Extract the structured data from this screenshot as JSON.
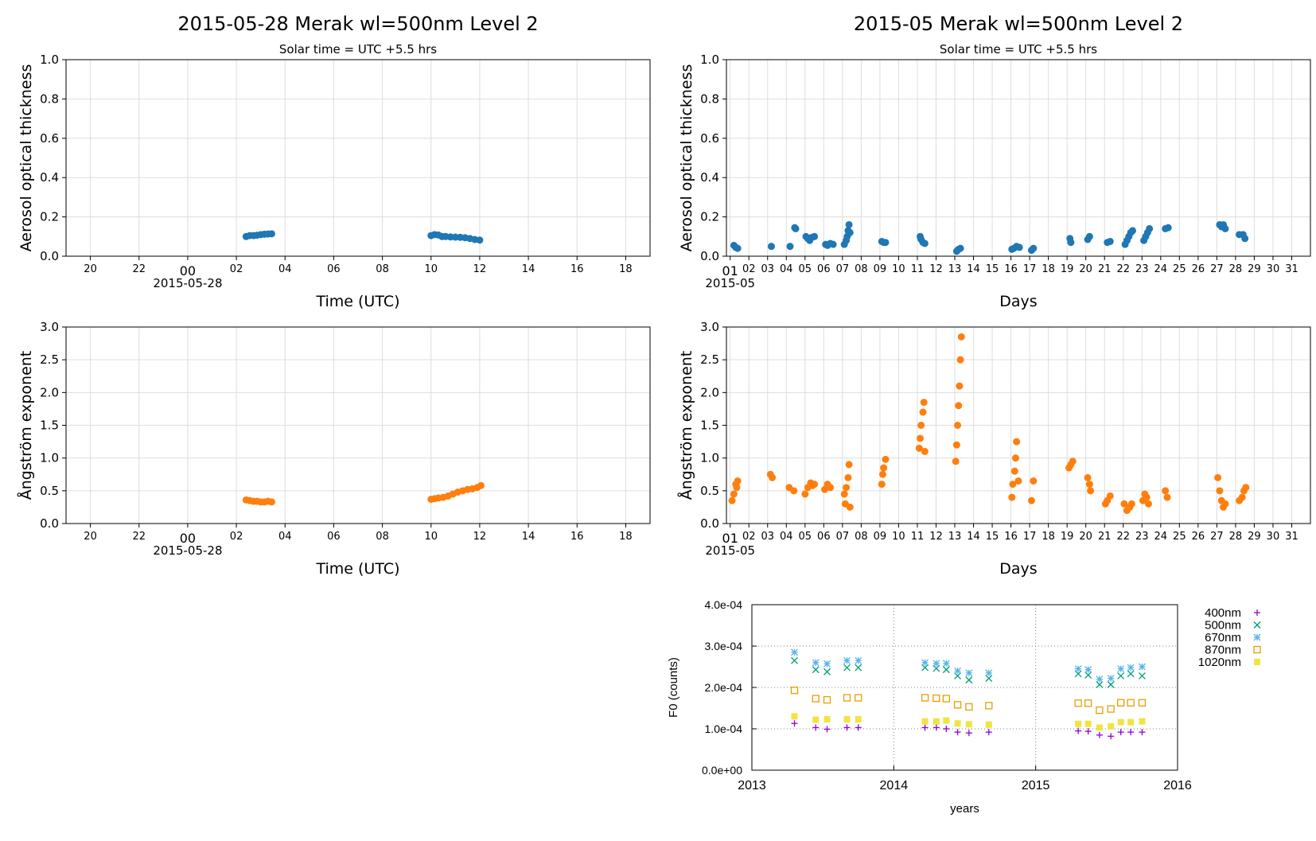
{
  "chart_data": [
    {
      "id": "daily_aod",
      "type": "scatter",
      "title": "2015-05-28  Merak  wl=500nm  Level 2",
      "subtitle": "Solar time = UTC +5.5 hrs",
      "xlabel": "Time (UTC)",
      "ylabel": "Aerosol optical thickness",
      "ylim": [
        0,
        1.0
      ],
      "yticks": [
        "0.0",
        "0.2",
        "0.4",
        "0.6",
        "0.8",
        "1.0"
      ],
      "xlim_hours": [
        -5,
        19
      ],
      "xticks": [
        {
          "h": -4,
          "label": "20"
        },
        {
          "h": -2,
          "label": "22"
        },
        {
          "h": 0,
          "label": "00"
        },
        {
          "h": 2,
          "label": "02"
        },
        {
          "h": 4,
          "label": "04"
        },
        {
          "h": 6,
          "label": "06"
        },
        {
          "h": 8,
          "label": "08"
        },
        {
          "h": 10,
          "label": "10"
        },
        {
          "h": 12,
          "label": "12"
        },
        {
          "h": 14,
          "label": "14"
        },
        {
          "h": 16,
          "label": "16"
        },
        {
          "h": 18,
          "label": "18"
        }
      ],
      "date_label": "2015-05-28",
      "grid": true,
      "color": "#1f77b4",
      "series": [
        {
          "x": [
            2.4,
            2.55,
            2.7,
            2.85,
            3.0,
            3.15,
            3.3,
            3.45,
            10.0,
            10.15,
            10.3,
            10.45,
            10.6,
            10.8,
            11.0,
            11.2,
            11.4,
            11.6,
            11.8,
            12.0
          ],
          "y": [
            0.1,
            0.105,
            0.105,
            0.107,
            0.11,
            0.112,
            0.113,
            0.114,
            0.105,
            0.11,
            0.108,
            0.1,
            0.1,
            0.098,
            0.097,
            0.096,
            0.094,
            0.09,
            0.085,
            0.082
          ]
        }
      ]
    },
    {
      "id": "monthly_aod",
      "type": "scatter",
      "title": "2015-05  Merak  wl=500nm  Level 2",
      "subtitle": "Solar time = UTC +5.5 hrs",
      "xlabel": "Days",
      "ylabel": "Aerosol optical thickness",
      "ylim": [
        0,
        1.0
      ],
      "yticks": [
        "0.0",
        "0.2",
        "0.4",
        "0.6",
        "0.8",
        "1.0"
      ],
      "xlim_days": [
        0.8,
        32.0
      ],
      "xticks": [
        "01",
        "02",
        "03",
        "04",
        "05",
        "06",
        "07",
        "08",
        "09",
        "10",
        "11",
        "12",
        "13",
        "14",
        "15",
        "16",
        "17",
        "18",
        "19",
        "20",
        "21",
        "22",
        "23",
        "24",
        "25",
        "26",
        "27",
        "28",
        "29",
        "30",
        "31"
      ],
      "date_label": "2015-05",
      "grid": true,
      "color": "#1f77b4",
      "series": [
        {
          "x": [
            1.2,
            1.3,
            1.4,
            3.2,
            4.2,
            4.45,
            4.5,
            5.05,
            5.15,
            5.25,
            5.35,
            5.5,
            6.1,
            6.2,
            6.35,
            6.5,
            7.1,
            7.2,
            7.25,
            7.3,
            7.35,
            7.4,
            9.1,
            9.2,
            9.3,
            11.15,
            11.2,
            11.3,
            11.4,
            13.1,
            13.2,
            13.3,
            16.05,
            16.15,
            16.3,
            16.45,
            17.1,
            17.2,
            19.15,
            19.2,
            20.1,
            20.2,
            21.15,
            21.3,
            22.1,
            22.2,
            22.3,
            22.4,
            22.5,
            23.1,
            23.2,
            23.3,
            23.4,
            24.25,
            24.4,
            27.15,
            27.25,
            27.35,
            27.45,
            28.2,
            28.4,
            28.5
          ],
          "y": [
            0.055,
            0.045,
            0.04,
            0.05,
            0.05,
            0.145,
            0.14,
            0.1,
            0.09,
            0.08,
            0.095,
            0.1,
            0.06,
            0.055,
            0.065,
            0.06,
            0.06,
            0.08,
            0.1,
            0.13,
            0.16,
            0.12,
            0.075,
            0.07,
            0.07,
            0.1,
            0.085,
            0.07,
            0.065,
            0.025,
            0.035,
            0.04,
            0.035,
            0.04,
            0.05,
            0.045,
            0.03,
            0.04,
            0.09,
            0.07,
            0.085,
            0.1,
            0.07,
            0.075,
            0.06,
            0.08,
            0.1,
            0.12,
            0.13,
            0.08,
            0.1,
            0.12,
            0.14,
            0.14,
            0.145,
            0.16,
            0.15,
            0.16,
            0.14,
            0.11,
            0.11,
            0.09
          ]
        }
      ]
    },
    {
      "id": "daily_angstrom",
      "type": "scatter",
      "xlabel": "Time (UTC)",
      "ylabel": "Ångström exponent",
      "ylim": [
        0,
        3.0
      ],
      "yticks": [
        "0.0",
        "0.5",
        "1.0",
        "1.5",
        "2.0",
        "2.5",
        "3.0"
      ],
      "xlim_hours": [
        -5,
        19
      ],
      "xticks": [
        {
          "h": -4,
          "label": "20"
        },
        {
          "h": -2,
          "label": "22"
        },
        {
          "h": 0,
          "label": "00"
        },
        {
          "h": 2,
          "label": "02"
        },
        {
          "h": 4,
          "label": "04"
        },
        {
          "h": 6,
          "label": "06"
        },
        {
          "h": 8,
          "label": "08"
        },
        {
          "h": 10,
          "label": "10"
        },
        {
          "h": 12,
          "label": "12"
        },
        {
          "h": 14,
          "label": "14"
        },
        {
          "h": 16,
          "label": "16"
        },
        {
          "h": 18,
          "label": "18"
        }
      ],
      "date_label": "2015-05-28",
      "grid": true,
      "color": "#ff7f0e",
      "series": [
        {
          "x": [
            2.4,
            2.55,
            2.7,
            2.85,
            3.0,
            3.15,
            3.3,
            3.45,
            10.0,
            10.15,
            10.3,
            10.5,
            10.7,
            10.9,
            11.1,
            11.3,
            11.5,
            11.7,
            11.9,
            12.05
          ],
          "y": [
            0.36,
            0.35,
            0.34,
            0.34,
            0.33,
            0.33,
            0.34,
            0.33,
            0.37,
            0.38,
            0.39,
            0.4,
            0.42,
            0.45,
            0.48,
            0.5,
            0.52,
            0.53,
            0.55,
            0.58
          ]
        }
      ]
    },
    {
      "id": "monthly_angstrom",
      "type": "scatter",
      "xlabel": "Days",
      "ylabel": "Ångström exponent",
      "ylim": [
        0,
        3.0
      ],
      "yticks": [
        "0.0",
        "0.5",
        "1.0",
        "1.5",
        "2.0",
        "2.5",
        "3.0"
      ],
      "xlim_days": [
        0.8,
        32.0
      ],
      "xticks": [
        "01",
        "02",
        "03",
        "04",
        "05",
        "06",
        "07",
        "08",
        "09",
        "10",
        "11",
        "12",
        "13",
        "14",
        "15",
        "16",
        "17",
        "18",
        "19",
        "20",
        "21",
        "22",
        "23",
        "24",
        "25",
        "26",
        "27",
        "28",
        "29",
        "30",
        "31"
      ],
      "date_label": "2015-05",
      "grid": true,
      "color": "#ff7f0e",
      "series": [
        {
          "x": [
            1.1,
            1.2,
            1.3,
            1.35,
            1.4,
            3.15,
            3.25,
            4.15,
            4.4,
            5.0,
            5.15,
            5.3,
            5.4,
            5.5,
            6.05,
            6.2,
            6.35,
            7.1,
            7.15,
            7.2,
            7.3,
            7.35,
            7.4,
            9.1,
            9.15,
            9.2,
            9.3,
            11.1,
            11.15,
            11.2,
            11.3,
            11.35,
            11.4,
            13.05,
            13.1,
            13.15,
            13.2,
            13.25,
            13.3,
            13.35,
            16.05,
            16.1,
            16.2,
            16.25,
            16.3,
            16.4,
            17.1,
            17.2,
            19.1,
            19.2,
            19.3,
            20.1,
            20.2,
            20.25,
            21.05,
            21.15,
            21.3,
            22.05,
            22.2,
            22.35,
            22.45,
            23.05,
            23.15,
            23.25,
            23.35,
            24.25,
            24.35,
            27.05,
            27.15,
            27.25,
            27.35,
            27.45,
            28.2,
            28.35,
            28.45,
            28.55
          ],
          "y": [
            0.35,
            0.45,
            0.6,
            0.55,
            0.65,
            0.75,
            0.7,
            0.55,
            0.5,
            0.45,
            0.55,
            0.62,
            0.58,
            0.6,
            0.52,
            0.6,
            0.55,
            0.45,
            0.3,
            0.55,
            0.7,
            0.9,
            0.25,
            0.6,
            0.75,
            0.85,
            0.98,
            1.15,
            1.3,
            1.5,
            1.7,
            1.85,
            1.1,
            0.95,
            1.2,
            1.5,
            1.8,
            2.1,
            2.5,
            2.85,
            0.4,
            0.6,
            0.8,
            1.0,
            1.25,
            0.65,
            0.35,
            0.65,
            0.85,
            0.9,
            0.95,
            0.7,
            0.6,
            0.5,
            0.3,
            0.35,
            0.42,
            0.3,
            0.2,
            0.25,
            0.3,
            0.35,
            0.45,
            0.4,
            0.3,
            0.5,
            0.4,
            0.7,
            0.5,
            0.35,
            0.25,
            0.3,
            0.35,
            0.4,
            0.5,
            0.55
          ]
        }
      ]
    },
    {
      "id": "f0_calibration",
      "type": "scatter",
      "xlabel": "years",
      "ylabel": "F0 (counts)",
      "xlim": [
        2013,
        2016
      ],
      "ylim": [
        0,
        0.0004
      ],
      "xticks": [
        "2013",
        "2014",
        "2015",
        "2016"
      ],
      "yticks": [
        "0.0e+00",
        "1.0e-04",
        "2.0e-04",
        "3.0e-04",
        "4.0e-04"
      ],
      "grid": "dotted",
      "x": [
        2013.3,
        2013.45,
        2013.53,
        2013.67,
        2013.75,
        2014.22,
        2014.3,
        2014.37,
        2014.45,
        2014.53,
        2014.67,
        2015.3,
        2015.37,
        2015.45,
        2015.53,
        2015.6,
        2015.67,
        2015.75
      ],
      "series": [
        {
          "name": "400nm",
          "marker": "+",
          "color": "#9400d3",
          "values": [
            0.000113,
            0.000103,
            9.9e-05,
            0.000103,
            0.000103,
            0.000103,
            0.000103,
            0.0001,
            9.2e-05,
            9e-05,
            9.2e-05,
            9.5e-05,
            9.4e-05,
            8.5e-05,
            8.2e-05,
            9.2e-05,
            9.2e-05,
            9.2e-05
          ]
        },
        {
          "name": "500nm",
          "marker": "x",
          "color": "#009e73",
          "values": [
            0.000265,
            0.000243,
            0.000238,
            0.000248,
            0.000248,
            0.000248,
            0.000246,
            0.000243,
            0.000228,
            0.000218,
            0.000222,
            0.000233,
            0.00023,
            0.000207,
            0.000207,
            0.000228,
            0.000233,
            0.000228
          ]
        },
        {
          "name": "670nm",
          "marker": "*",
          "color": "#56b4e9",
          "values": [
            0.000285,
            0.00026,
            0.000257,
            0.000265,
            0.000265,
            0.00026,
            0.000258,
            0.000258,
            0.00024,
            0.000235,
            0.000235,
            0.000245,
            0.000243,
            0.00022,
            0.000222,
            0.000245,
            0.000248,
            0.00025
          ]
        },
        {
          "name": "870nm",
          "marker": "square-open",
          "color": "#e69f00",
          "values": [
            0.000193,
            0.000173,
            0.00017,
            0.000175,
            0.000175,
            0.000175,
            0.000174,
            0.000173,
            0.000158,
            0.000153,
            0.000156,
            0.000162,
            0.000162,
            0.000145,
            0.000148,
            0.000163,
            0.000163,
            0.000163
          ]
        },
        {
          "name": "1020nm",
          "marker": "square-filled",
          "color": "#f0e442",
          "values": [
            0.00013,
            0.000122,
            0.000123,
            0.000123,
            0.000123,
            0.000118,
            0.000118,
            0.00012,
            0.000113,
            0.000111,
            0.00011,
            0.000112,
            0.000112,
            0.000103,
            0.000106,
            0.000116,
            0.000116,
            0.000118
          ]
        }
      ]
    }
  ]
}
